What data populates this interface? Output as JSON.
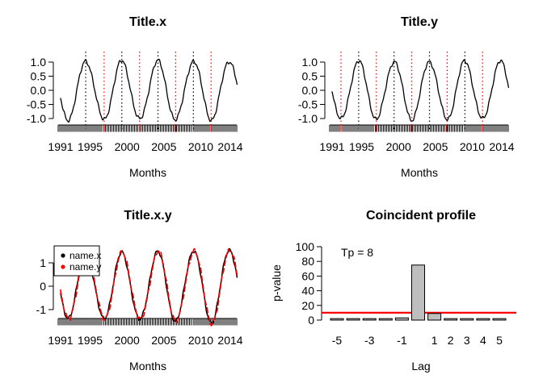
{
  "figure": {
    "background": "#ffffff",
    "colors": {
      "series_black": "#000000",
      "series_red": "#ff0000",
      "peak_line": "#000000",
      "trough_line": "#ff0000",
      "ref_line": "#ff0000",
      "bar_fill": "#bebebe",
      "bar_border": "#000000",
      "axis": "#000000"
    }
  },
  "chart_data": [
    {
      "id": "title_x",
      "type": "line",
      "title": "Title.x",
      "xlabel": "Months",
      "ylabel": "",
      "x_range": [
        1991,
        2014.92
      ],
      "sampling": "monthly",
      "x_ticks": [
        1991,
        1995,
        2000,
        2005,
        2010,
        2014
      ],
      "y_ticks": [
        {
          "value": 1.0,
          "label": "1.0"
        },
        {
          "value": 0.5,
          "label": "0.5"
        },
        {
          "value": 0.0,
          "label": "0.0"
        },
        {
          "value": -0.5,
          "label": "-0.5"
        },
        {
          "value": -1.0,
          "label": "-1.0"
        }
      ],
      "ylim": [
        -1.25,
        1.25
      ],
      "grid": false,
      "series": [
        {
          "name": "x",
          "color": "#000000",
          "line_style": "solid",
          "width": 1.3,
          "model": {
            "kind": "noisy_sine",
            "amplitude": 1.04,
            "amplitude_growth": 0,
            "period_years": 4.86,
            "trough_year": 1992.0,
            "phase_shift": 0,
            "noise_amp": 0.09,
            "seed": 1
          }
        }
      ],
      "turning_point_lines": {
        "peaks": {
          "color": "#000000",
          "style": "dotted",
          "years": [
            1994.4,
            1999.3,
            2004.2,
            2009.0
          ]
        },
        "troughs": {
          "color": "#ff0000",
          "style": "dotted",
          "years": [
            1996.9,
            2001.7,
            2006.6,
            2011.4
          ]
        }
      },
      "rug": {
        "interval": "monthly"
      }
    },
    {
      "id": "title_y",
      "type": "line",
      "title": "Title.y",
      "xlabel": "Months",
      "ylabel": "",
      "x_range": [
        1991,
        2014.92
      ],
      "sampling": "monthly",
      "x_ticks": [
        1991,
        1995,
        2000,
        2005,
        2010,
        2014
      ],
      "y_ticks": [
        {
          "value": 1.0,
          "label": "1.0"
        },
        {
          "value": 0.5,
          "label": "0.5"
        },
        {
          "value": 0.0,
          "label": "0.0"
        },
        {
          "value": -0.5,
          "label": "-0.5"
        },
        {
          "value": -1.0,
          "label": "-1.0"
        }
      ],
      "ylim": [
        -1.25,
        1.25
      ],
      "grid": false,
      "series": [
        {
          "name": "y",
          "color": "#000000",
          "line_style": "solid",
          "width": 1.3,
          "model": {
            "kind": "noisy_sine",
            "amplitude": 1.03,
            "amplitude_growth": 0,
            "period_years": 4.8,
            "trough_year": 1992.2,
            "phase_shift": 0,
            "noise_amp": 0.09,
            "seed": 2
          }
        }
      ],
      "turning_point_lines": {
        "peaks": {
          "color": "#000000",
          "style": "dotted",
          "years": [
            1994.6,
            1999.4,
            2004.2,
            2009.0
          ]
        },
        "troughs": {
          "color": "#ff0000",
          "style": "dotted",
          "years": [
            1992.2,
            1997.0,
            2001.8,
            2006.6,
            2011.4
          ]
        }
      },
      "rug": {
        "interval": "monthly"
      }
    },
    {
      "id": "title_x_y",
      "type": "line",
      "title": "Title.x.y",
      "xlabel": "Months",
      "ylabel": "",
      "x_range": [
        1991,
        2014.92
      ],
      "sampling": "monthly",
      "x_ticks": [
        1991,
        1995,
        2000,
        2005,
        2010,
        2014
      ],
      "y_ticks": [
        {
          "value": 1,
          "label": "1"
        },
        {
          "value": 0,
          "label": "0"
        },
        {
          "value": -1,
          "label": "-1"
        }
      ],
      "ylim": [
        -1.75,
        1.75
      ],
      "grid": false,
      "legend": {
        "position": "topleft",
        "entries": [
          {
            "label": "name.x",
            "color": "#000000",
            "marker": "dot"
          },
          {
            "label": "name.y",
            "color": "#ff0000",
            "marker": "dot"
          }
        ]
      },
      "series": [
        {
          "name": "name.x",
          "color": "#000000",
          "line_style": "solid",
          "width": 1.5,
          "model": {
            "kind": "noisy_sine",
            "amplitude": 1.33,
            "amplitude_growth": 0.011,
            "period_years": 4.86,
            "trough_year": 1992.0,
            "phase_shift": 0,
            "noise_amp": 0.1,
            "seed": 3
          }
        },
        {
          "name": "name.y",
          "color": "#ff0000",
          "line_style": "dashed",
          "width": 1.7,
          "model": {
            "kind": "noisy_sine",
            "amplitude": 1.33,
            "amplitude_growth": 0.011,
            "period_years": 4.86,
            "trough_year": 1992.0,
            "phase_shift": 0.08,
            "noise_amp": 0.12,
            "seed": 5
          }
        }
      ],
      "rug": {
        "interval": "monthly"
      }
    },
    {
      "id": "coincident_profile",
      "type": "bar",
      "title": "Coincident profile",
      "xlabel": "Lag",
      "ylabel": "p-value",
      "annotation": "Tp = 8",
      "categories": [
        -5,
        -4,
        -3,
        -2,
        -1,
        0,
        1,
        2,
        3,
        4,
        5
      ],
      "values": [
        2,
        2,
        2,
        2,
        3,
        75,
        9,
        2,
        2,
        2,
        2
      ],
      "x_tick_labels": [
        "-5",
        "-3",
        "-1",
        "1",
        "2",
        "3",
        "4",
        "5"
      ],
      "x_tick_label_lags": [
        -5,
        -3,
        -1,
        1,
        2,
        3,
        4,
        5
      ],
      "y_ticks": [
        0,
        20,
        40,
        60,
        80,
        100
      ],
      "ylim": [
        0,
        100
      ],
      "grid": false,
      "ref_line": {
        "value": 10,
        "color": "#ff0000"
      },
      "bar_fill": "#bebebe",
      "bar_border": "#000000"
    }
  ]
}
